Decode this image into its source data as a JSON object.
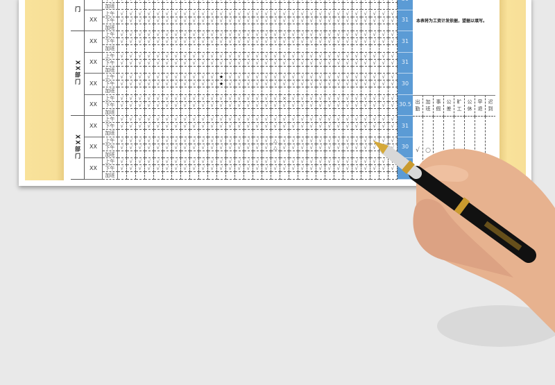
{
  "sheet": {
    "row_types": [
      "上午",
      "下午",
      "加班"
    ],
    "default_mark": "√",
    "days": 31,
    "colors": {
      "total_column": "#5b9bd5",
      "background_panel": "#f9e29a"
    },
    "departments": [
      {
        "label": "门",
        "groups": [
          0,
          1
        ]
      },
      {
        "label": "XX部门",
        "groups": [
          2,
          3,
          4,
          5
        ]
      },
      {
        "label": "XX部门",
        "groups": [
          6,
          7,
          8
        ]
      }
    ],
    "groups": [
      {
        "name": "",
        "total": "30",
        "marks": []
      },
      {
        "name": "XX",
        "total": "31",
        "marks": []
      },
      {
        "name": "XX",
        "total": "31",
        "marks": []
      },
      {
        "name": "XX",
        "total": "31",
        "marks": []
      },
      {
        "name": "XX",
        "total": "30",
        "marks": [
          {
            "row": 0,
            "day": 12,
            "symbol": "★"
          },
          {
            "row": 1,
            "day": 12,
            "symbol": "★"
          }
        ]
      },
      {
        "name": "XX",
        "total": "30.5",
        "marks": [
          {
            "row": 0,
            "day": 19,
            "symbol": "×"
          }
        ]
      },
      {
        "name": "XX",
        "total": "31",
        "marks": []
      },
      {
        "name": "XX",
        "total": "30",
        "marks": [
          {
            "row": 0,
            "day": 18,
            "symbol": "△"
          },
          {
            "row": 1,
            "day": 18,
            "symbol": "△"
          }
        ]
      },
      {
        "name": "XX",
        "total": "",
        "marks": []
      }
    ]
  },
  "note": "本表将为工资计发依据，望据以填写。",
  "legend": {
    "headers": [
      "出勤",
      "加班",
      "事假",
      "公差",
      "旷工",
      "公休",
      "早退",
      "迟到"
    ],
    "symbols": [
      "√",
      "○",
      "",
      "",
      "",
      "",
      "",
      ""
    ]
  }
}
